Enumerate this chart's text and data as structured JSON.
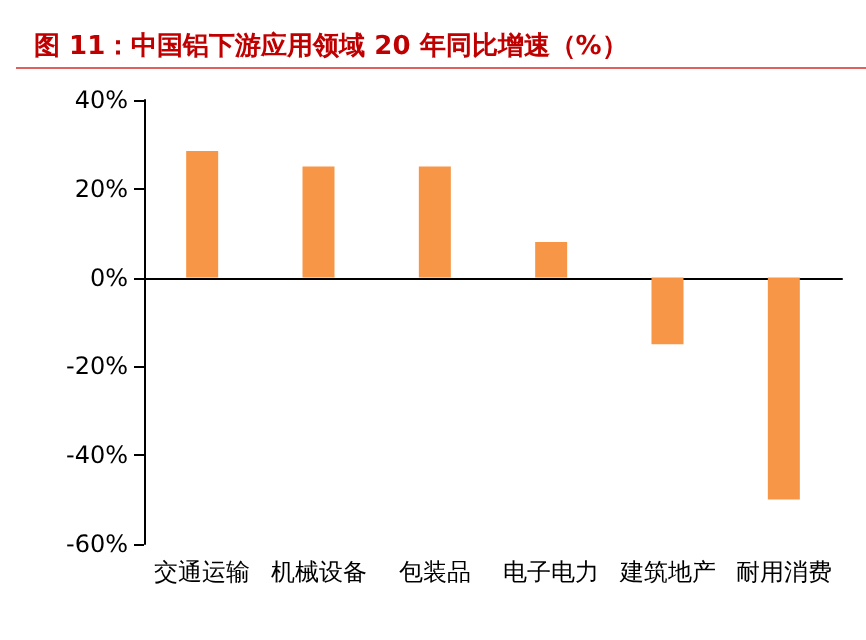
{
  "chart_data": {
    "type": "bar",
    "title": "图 11：中国铝下游应用领域 20 年同比增速（%）",
    "categories": [
      "交通运输",
      "机械设备",
      "包装品",
      "电子电力",
      "建筑地产",
      "耐用消费"
    ],
    "values": [
      28.5,
      25,
      25,
      8,
      -15,
      -50
    ],
    "color": "#f79646",
    "ylim": [
      -60,
      40
    ],
    "yticks": [
      {
        "value": -60,
        "label": "-60%"
      },
      {
        "value": -40,
        "label": "-40%"
      },
      {
        "value": -20,
        "label": "-20%"
      },
      {
        "value": 0,
        "label": "0%"
      },
      {
        "value": 20,
        "label": "20%"
      },
      {
        "value": 40,
        "label": "40%"
      }
    ]
  }
}
